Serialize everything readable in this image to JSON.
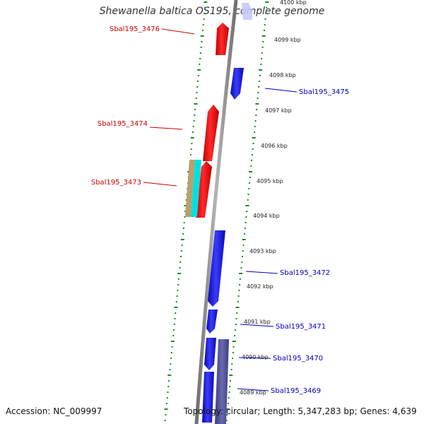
{
  "title": "Shewanella baltica OS195, complete genome",
  "accession": "Accession: NC_009997",
  "summary": "Topology: circular; Length: 5,347,283 bp; Genes: 4,639",
  "kbp_ticks": [
    {
      "label": "4100 kbp"
    },
    {
      "label": "4099 kbp"
    },
    {
      "label": "4098 kbp"
    },
    {
      "label": "4097 kbp"
    },
    {
      "label": "4096 kbp"
    },
    {
      "label": "4095 kbp"
    },
    {
      "label": "4094 kbp"
    },
    {
      "label": "4093 kbp"
    },
    {
      "label": "4092 kbp"
    },
    {
      "label": "4091 kbp"
    },
    {
      "label": "4090 kbp"
    },
    {
      "label": "4089 kbp"
    }
  ],
  "gene_labels": [
    {
      "label": "Sbal195_3476",
      "color": "#cc0000"
    },
    {
      "label": "Sbal195_3475",
      "color": "#0000bb"
    },
    {
      "label": "Sbal195_3474",
      "color": "#cc0000"
    },
    {
      "label": "Sbal195_3473",
      "color": "#cc0000"
    },
    {
      "label": "Sbal195_3472",
      "color": "#0000bb"
    },
    {
      "label": "Sbal195_3471",
      "color": "#0000bb"
    },
    {
      "label": "Sbal195_3470",
      "color": "#0000bb"
    },
    {
      "label": "Sbal195_3469",
      "color": "#0000bb"
    }
  ],
  "colors": {
    "forward_cds": "#ff0000",
    "reverse_cds": "#1a1aee",
    "backbone": "#8a8a8a",
    "ticks": "#228822",
    "rrna": "#b8a070",
    "trna": "#00e0e0",
    "other": "#555599"
  }
}
